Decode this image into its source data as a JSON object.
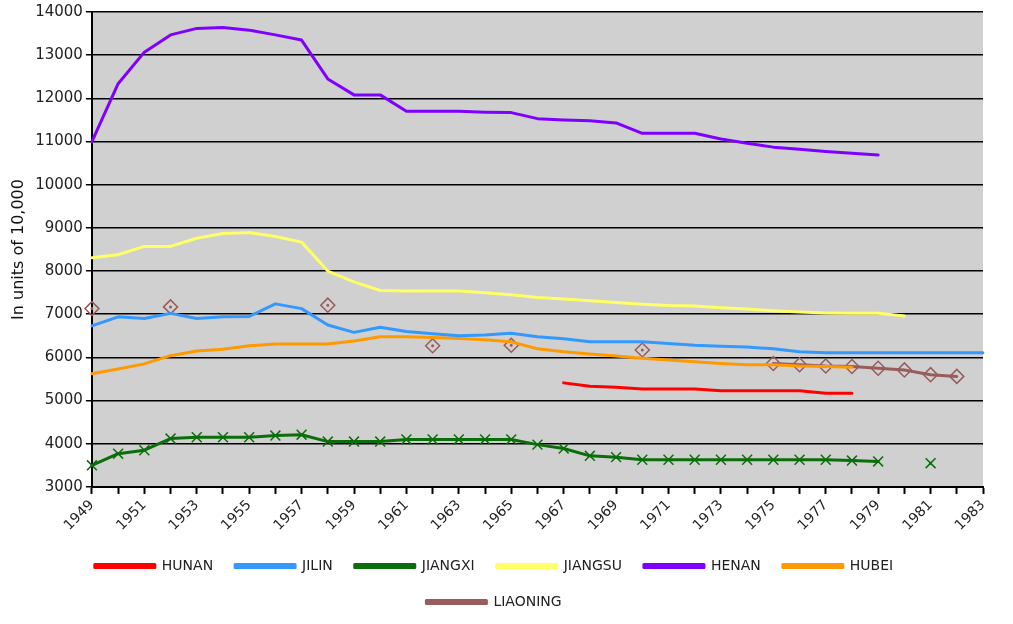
{
  "chart_data": {
    "type": "line",
    "ylabel": "In units of 10,000",
    "categories": [
      "1949",
      null,
      "1951",
      null,
      "1953",
      null,
      "1955",
      null,
      "1957",
      null,
      "1959",
      null,
      "1961",
      null,
      "1963",
      null,
      "1965",
      null,
      "1967",
      null,
      "1969",
      null,
      "1971",
      null,
      "1973",
      null,
      "1975",
      null,
      "1977",
      null,
      "1979",
      null,
      "1981",
      null,
      "1983"
    ],
    "ylim": [
      3000,
      14000
    ],
    "yticks": [
      3000,
      4000,
      5000,
      6000,
      7000,
      8000,
      9000,
      10000,
      11000,
      12000,
      13000,
      14000
    ],
    "grid": "y",
    "legend": "bottom",
    "line_style": "solid",
    "series": [
      {
        "name": "HUNAN",
        "color": "#ff0000",
        "marker": "none",
        "values": [
          null,
          null,
          null,
          null,
          null,
          null,
          null,
          null,
          null,
          null,
          null,
          null,
          null,
          null,
          null,
          null,
          null,
          null,
          5410,
          5330,
          5310,
          5270,
          5270,
          5270,
          5230,
          5230,
          5230,
          5230,
          5170,
          5170,
          null,
          null,
          null,
          null,
          null
        ]
      },
      {
        "name": "JILIN",
        "color": "#3399ff",
        "marker": "none",
        "values": [
          6730,
          6940,
          6900,
          7020,
          6900,
          6940,
          6950,
          7240,
          7130,
          6750,
          6580,
          6700,
          6600,
          6550,
          6500,
          6520,
          6560,
          6480,
          6430,
          6360,
          6360,
          6360,
          6320,
          6280,
          6260,
          6240,
          6200,
          6130,
          6110,
          6110,
          6110,
          6110,
          6110,
          6110,
          6110
        ]
      },
      {
        "name": "JIANGXI",
        "color": "#0a6e0a",
        "marker": "cross",
        "values": [
          3500,
          3770,
          3850,
          4120,
          4150,
          4150,
          4150,
          4190,
          4210,
          4050,
          4050,
          4050,
          4100,
          4100,
          4100,
          4100,
          4100,
          3980,
          3890,
          3720,
          3690,
          3630,
          3630,
          3630,
          3630,
          3630,
          3630,
          3630,
          3630,
          3610,
          3590,
          null,
          3550,
          null,
          null
        ]
      },
      {
        "name": "JIANGSU",
        "color": "#ffff66",
        "marker": "none",
        "values": [
          8310,
          8380,
          8570,
          8570,
          8760,
          8870,
          8890,
          8800,
          8670,
          8000,
          7750,
          7550,
          7540,
          7540,
          7540,
          7500,
          7450,
          7390,
          7350,
          7310,
          7270,
          7230,
          7200,
          7190,
          7150,
          7120,
          7080,
          7050,
          7030,
          7020,
          7020,
          6960,
          null,
          null,
          null
        ]
      },
      {
        "name": "HENAN",
        "color": "#7f00ff",
        "marker": "none",
        "values": [
          11000,
          12340,
          13070,
          13470,
          13620,
          13640,
          13580,
          13470,
          13350,
          12450,
          12080,
          12080,
          11700,
          11700,
          11700,
          11680,
          11670,
          11530,
          11500,
          11480,
          11430,
          11190,
          11190,
          11190,
          11060,
          10960,
          10870,
          10820,
          10770,
          10730,
          10690,
          null,
          null,
          null,
          null
        ]
      },
      {
        "name": "HUBEI",
        "color": "#ff9900",
        "marker": "none",
        "values": [
          5620,
          5730,
          5850,
          6040,
          6150,
          6190,
          6270,
          6310,
          6310,
          6310,
          6380,
          6480,
          6480,
          6460,
          6440,
          6410,
          6360,
          6200,
          6130,
          6080,
          6030,
          5980,
          5940,
          5900,
          5860,
          5830,
          5830,
          5800,
          5790,
          5770,
          null,
          null,
          null,
          null,
          null
        ]
      },
      {
        "name": "LIAONING",
        "color": "#995c5c",
        "marker": "diamond",
        "values": [
          7130,
          null,
          null,
          7170,
          null,
          null,
          null,
          null,
          null,
          7210,
          null,
          null,
          null,
          6270,
          null,
          null,
          6280,
          null,
          null,
          null,
          null,
          6170,
          null,
          null,
          null,
          null,
          5860,
          5830,
          5800,
          5790,
          5750,
          5710,
          5600,
          5560,
          null
        ]
      }
    ]
  }
}
